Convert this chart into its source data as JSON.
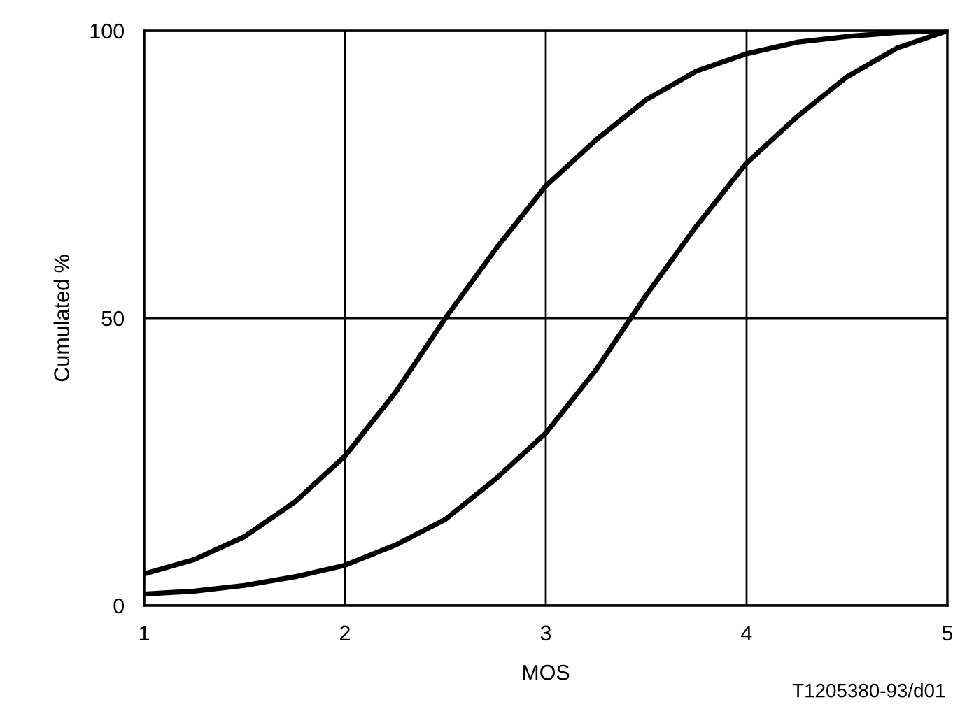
{
  "chart_data": {
    "type": "line",
    "xlabel": "MOS",
    "ylabel": "Cumulated %",
    "annotations": [
      "T1205380-93/d01"
    ],
    "x": [
      1,
      1.25,
      1.5,
      1.75,
      2,
      2.25,
      2.5,
      2.75,
      3,
      3.25,
      3.5,
      3.75,
      4,
      4.25,
      4.5,
      4.75,
      5
    ],
    "series": [
      {
        "color": "#000000",
        "values": [
          5.5,
          8,
          12,
          18,
          26,
          37,
          50,
          62,
          73,
          81,
          88,
          93,
          96,
          98,
          99,
          99.7,
          100
        ]
      },
      {
        "color": "#000000",
        "values": [
          2,
          2.5,
          3.5,
          5,
          7,
          10.5,
          15,
          22,
          30,
          41,
          54,
          66,
          77,
          85,
          92,
          97,
          100
        ]
      }
    ],
    "xlim": [
      1,
      5
    ],
    "xticks": [
      1,
      2,
      3,
      4,
      5
    ],
    "ylim": [
      0,
      100
    ],
    "yticks": [
      0,
      50,
      100
    ],
    "grid": true,
    "marker": "none",
    "line_style": "solid"
  }
}
